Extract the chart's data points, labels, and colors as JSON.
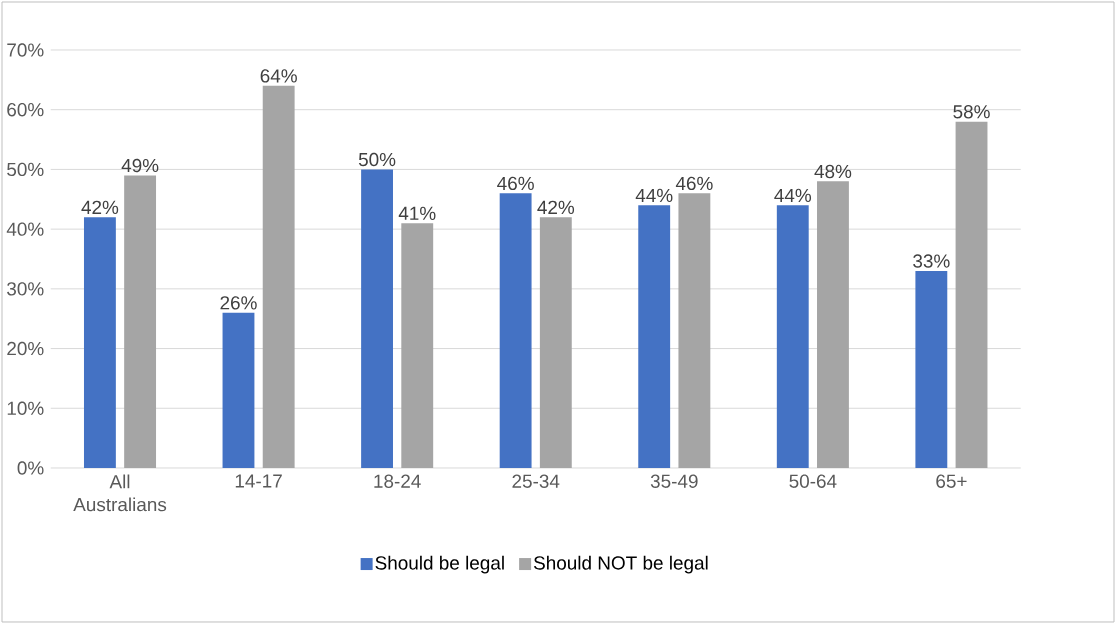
{
  "chart_data": {
    "type": "bar",
    "categories": [
      "All Australians",
      "14-17",
      "18-24",
      "25-34",
      "35-49",
      "50-64",
      "65+"
    ],
    "series": [
      {
        "name": "Should be legal",
        "color": "#4472c4",
        "values": [
          42,
          26,
          50,
          46,
          44,
          44,
          33
        ],
        "value_labels": [
          "42%",
          "26%",
          "50%",
          "46%",
          "44%",
          "44%",
          "33%"
        ]
      },
      {
        "name": "Should NOT be legal",
        "color": "#a5a5a5",
        "values": [
          49,
          64,
          41,
          42,
          46,
          48,
          58
        ],
        "value_labels": [
          "49%",
          "64%",
          "41%",
          "42%",
          "46%",
          "48%",
          "58%"
        ]
      }
    ],
    "ylim": [
      0,
      70
    ],
    "yticks": [
      {
        "value": 0,
        "label": "0%"
      },
      {
        "value": 10,
        "label": "10%"
      },
      {
        "value": 20,
        "label": "20%"
      },
      {
        "value": 30,
        "label": "30%"
      },
      {
        "value": 40,
        "label": "40%"
      },
      {
        "value": 50,
        "label": "50%"
      },
      {
        "value": 60,
        "label": "60%"
      },
      {
        "value": 70,
        "label": "70%"
      }
    ],
    "grid": "y",
    "legend": "bottom"
  }
}
